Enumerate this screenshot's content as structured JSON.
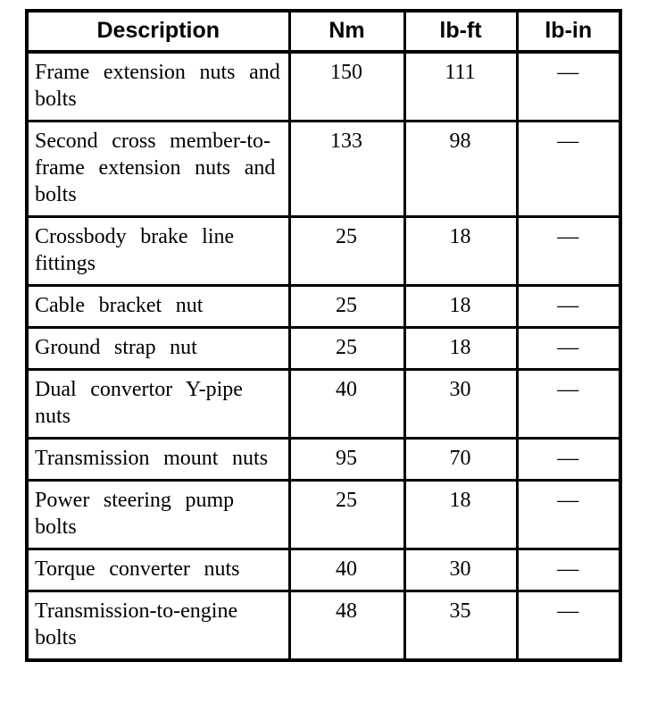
{
  "colors": {
    "background": "#ffffff",
    "border": "#000000",
    "text": "#000000"
  },
  "table": {
    "columns": [
      {
        "key": "description",
        "label": "Description"
      },
      {
        "key": "nm",
        "label": "Nm"
      },
      {
        "key": "lb_ft",
        "label": "lb-ft"
      },
      {
        "key": "lb_in",
        "label": "lb-in"
      }
    ],
    "rows": [
      {
        "description": "Frame extension nuts and bolts",
        "nm": "150",
        "lb_ft": "111",
        "lb_in": "—"
      },
      {
        "description": "Second cross member-to-frame extension nuts and bolts",
        "nm": "133",
        "lb_ft": "98",
        "lb_in": "—"
      },
      {
        "description": "Crossbody brake line fittings",
        "nm": "25",
        "lb_ft": "18",
        "lb_in": "—"
      },
      {
        "description": "Cable bracket nut",
        "nm": "25",
        "lb_ft": "18",
        "lb_in": "—"
      },
      {
        "description": "Ground strap nut",
        "nm": "25",
        "lb_ft": "18",
        "lb_in": "—"
      },
      {
        "description": "Dual convertor Y-pipe nuts",
        "nm": "40",
        "lb_ft": "30",
        "lb_in": "—"
      },
      {
        "description": "Transmission mount nuts",
        "nm": "95",
        "lb_ft": "70",
        "lb_in": "—"
      },
      {
        "description": "Power steering pump bolts",
        "nm": "25",
        "lb_ft": "18",
        "lb_in": "—"
      },
      {
        "description": "Torque converter nuts",
        "nm": "40",
        "lb_ft": "30",
        "lb_in": "—"
      },
      {
        "description": "Transmission-to-engine bolts",
        "nm": "48",
        "lb_ft": "35",
        "lb_in": "—"
      }
    ]
  }
}
